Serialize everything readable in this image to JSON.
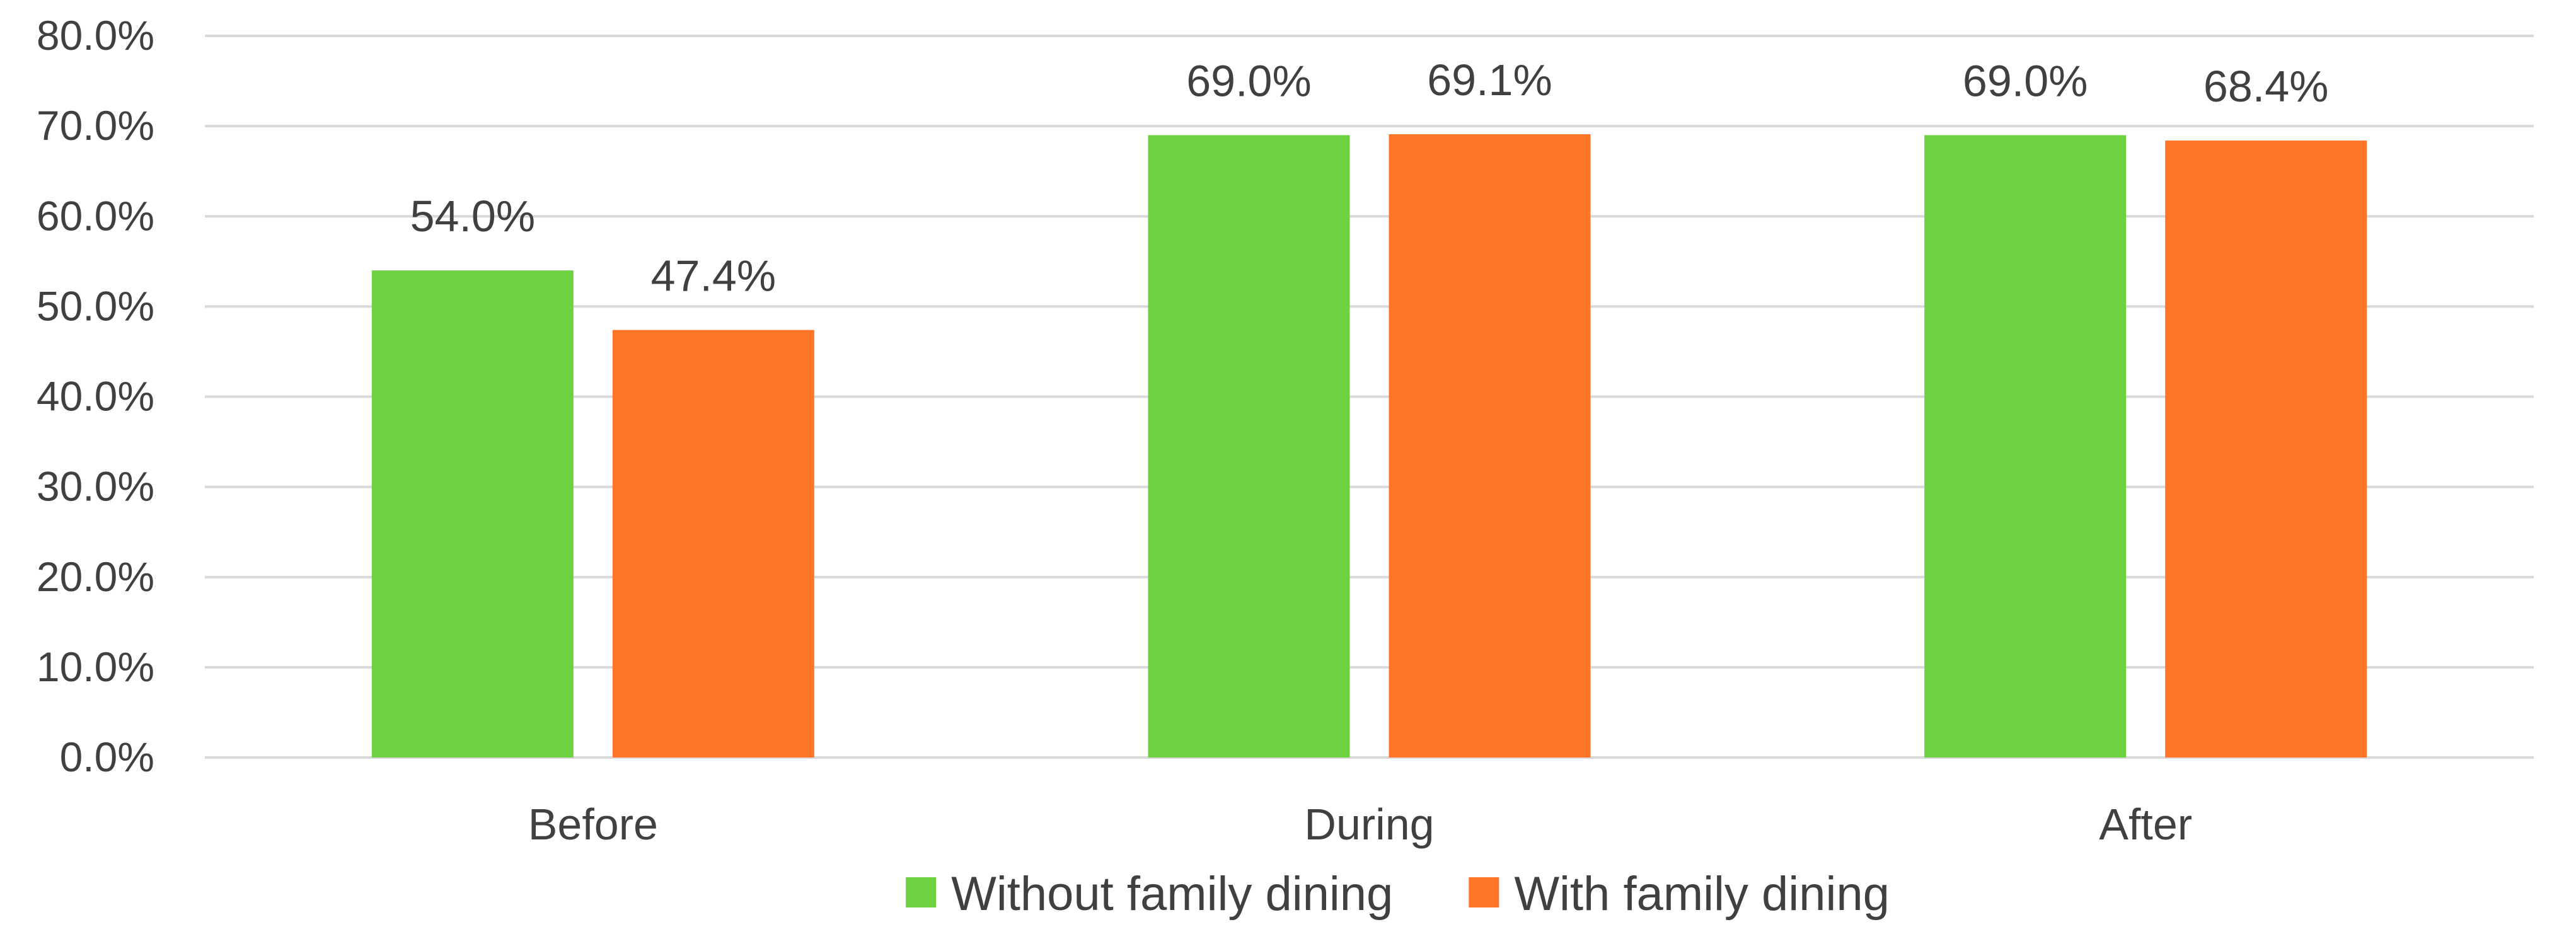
{
  "chart_data": {
    "type": "bar",
    "title": "",
    "xlabel": "",
    "ylabel": "",
    "categories": [
      "Before",
      "During",
      "After"
    ],
    "series": [
      {
        "name": "Without family dining",
        "values": [
          54.0,
          69.0,
          69.0
        ],
        "color": "#6dd142"
      },
      {
        "name": "With family dining",
        "values": [
          47.4,
          69.1,
          68.4
        ],
        "color": "#ff7528"
      }
    ],
    "value_labels": {
      "Without family dining": [
        "54.0%",
        "69.0%",
        "69.0%"
      ],
      "With family dining": [
        "47.4%",
        "69.1%",
        "68.4%"
      ]
    },
    "ylim": [
      0,
      80
    ],
    "yticks": [
      0,
      10,
      20,
      30,
      40,
      50,
      60,
      70,
      80
    ],
    "ytick_labels": [
      "0.0%",
      "10.0%",
      "20.0%",
      "30.0%",
      "40.0%",
      "50.0%",
      "60.0%",
      "70.0%",
      "80.0%"
    ],
    "grid": true,
    "gridline_color": "#d9d9d9",
    "legend_position": "bottom"
  }
}
